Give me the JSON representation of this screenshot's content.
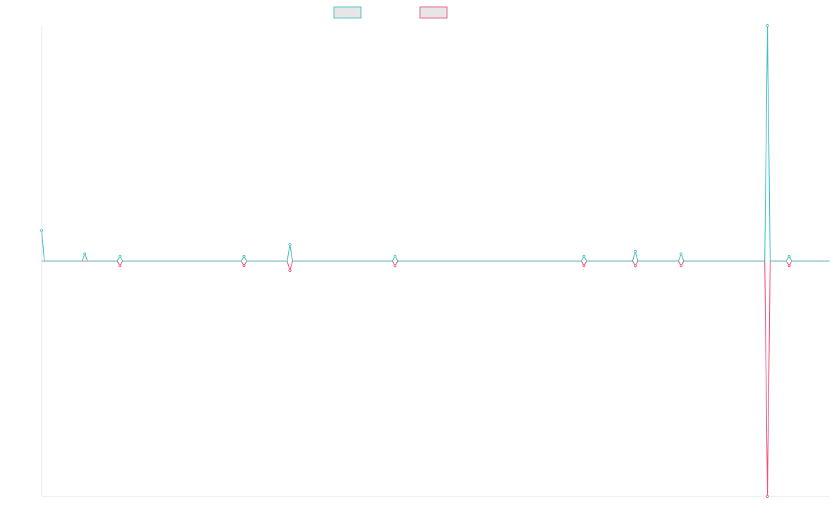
{
  "chart_data": {
    "type": "line",
    "title": "",
    "xlabel": "",
    "ylabel": "",
    "grid": false,
    "legend": "top-center",
    "colors": {
      "series_a": "#3fbfbf",
      "series_b": "#ef4f76",
      "legend_fill": "#e6e6e6",
      "axis": "#e6e6e6"
    },
    "ylim": [
      -100,
      100
    ],
    "series": [
      {
        "values": [
          13,
          0,
          0,
          0,
          0,
          0,
          0,
          0,
          0,
          0,
          0,
          0,
          0,
          0,
          0,
          0,
          3,
          0,
          0,
          0,
          0,
          0,
          0,
          0,
          0,
          0,
          0,
          0,
          0,
          2,
          0,
          0,
          0,
          0,
          0,
          0,
          0,
          0,
          0,
          0,
          0,
          0,
          0,
          0,
          0,
          0,
          0,
          0,
          0,
          0,
          0,
          0,
          0,
          0,
          0,
          0,
          0,
          0,
          0,
          0,
          0,
          0,
          0,
          0,
          0,
          0,
          0,
          0,
          0,
          0,
          0,
          0,
          0,
          0,
          0,
          2,
          0,
          0,
          0,
          0,
          0,
          0,
          0,
          0,
          0,
          0,
          0,
          0,
          0,
          0,
          0,
          0,
          7,
          0,
          0,
          0,
          0,
          0,
          0,
          0,
          0,
          0,
          0,
          0,
          0,
          0,
          0,
          0,
          0,
          0,
          0,
          0,
          0,
          0,
          0,
          0,
          0,
          0,
          0,
          0,
          0,
          0,
          0,
          0,
          0,
          0,
          0,
          0,
          0,
          0,
          0,
          2,
          0,
          0,
          0,
          0,
          0,
          0,
          0,
          0,
          0,
          0,
          0,
          0,
          0,
          0,
          0,
          0,
          0,
          0,
          0,
          0,
          0,
          0,
          0,
          0,
          0,
          0,
          0,
          0,
          0,
          0,
          0,
          0,
          0,
          0,
          0,
          0,
          0,
          0,
          0,
          0,
          0,
          0,
          0,
          0,
          0,
          0,
          0,
          0,
          0,
          0,
          0,
          0,
          0,
          0,
          0,
          0,
          0,
          0,
          0,
          0,
          0,
          0,
          0,
          0,
          0,
          0,
          0,
          0,
          0,
          2,
          0,
          0,
          0,
          0,
          0,
          0,
          0,
          0,
          0,
          0,
          0,
          0,
          0,
          0,
          0,
          0,
          0,
          0,
          4,
          0,
          0,
          0,
          0,
          0,
          0,
          0,
          0,
          0,
          0,
          0,
          0,
          0,
          0,
          0,
          0,
          3,
          0,
          0,
          0,
          0,
          0,
          0,
          0,
          0,
          0,
          0,
          0,
          0,
          0,
          0,
          0,
          0,
          0,
          0,
          0,
          0,
          0,
          0,
          0,
          0,
          0,
          0,
          0,
          0,
          0,
          0,
          0,
          100,
          0,
          0,
          0,
          0,
          0,
          0,
          0,
          2,
          0,
          0,
          0,
          0,
          0,
          0,
          0,
          0,
          0,
          0,
          0,
          0,
          0,
          0,
          0
        ]
      },
      {
        "values": [
          0,
          0,
          0,
          0,
          0,
          0,
          0,
          0,
          0,
          0,
          0,
          0,
          0,
          0,
          0,
          0,
          0,
          0,
          0,
          0,
          0,
          0,
          0,
          0,
          0,
          0,
          0,
          0,
          0,
          -2,
          0,
          0,
          0,
          0,
          0,
          0,
          0,
          0,
          0,
          0,
          0,
          0,
          0,
          0,
          0,
          0,
          0,
          0,
          0,
          0,
          0,
          0,
          0,
          0,
          0,
          0,
          0,
          0,
          0,
          0,
          0,
          0,
          0,
          0,
          0,
          0,
          0,
          0,
          0,
          0,
          0,
          0,
          0,
          0,
          0,
          -2,
          0,
          0,
          0,
          0,
          0,
          0,
          0,
          0,
          0,
          0,
          0,
          0,
          0,
          0,
          0,
          0,
          -4,
          0,
          0,
          0,
          0,
          0,
          0,
          0,
          0,
          0,
          0,
          0,
          0,
          0,
          0,
          0,
          0,
          0,
          0,
          0,
          0,
          0,
          0,
          0,
          0,
          0,
          0,
          0,
          0,
          0,
          0,
          0,
          0,
          0,
          0,
          0,
          0,
          0,
          0,
          -2,
          0,
          0,
          0,
          0,
          0,
          0,
          0,
          0,
          0,
          0,
          0,
          0,
          0,
          0,
          0,
          0,
          0,
          0,
          0,
          0,
          0,
          0,
          0,
          0,
          0,
          0,
          0,
          0,
          0,
          0,
          0,
          0,
          0,
          0,
          0,
          0,
          0,
          0,
          0,
          0,
          0,
          0,
          0,
          0,
          0,
          0,
          0,
          0,
          0,
          0,
          0,
          0,
          0,
          0,
          0,
          0,
          0,
          0,
          0,
          0,
          0,
          0,
          0,
          0,
          0,
          0,
          0,
          0,
          0,
          -2,
          0,
          0,
          0,
          0,
          0,
          0,
          0,
          0,
          0,
          0,
          0,
          0,
          0,
          0,
          0,
          0,
          0,
          0,
          -2,
          0,
          0,
          0,
          0,
          0,
          0,
          0,
          0,
          0,
          0,
          0,
          0,
          0,
          0,
          0,
          0,
          -2,
          0,
          0,
          0,
          0,
          0,
          0,
          0,
          0,
          0,
          0,
          0,
          0,
          0,
          0,
          0,
          0,
          0,
          0,
          0,
          0,
          0,
          0,
          0,
          0,
          0,
          0,
          0,
          0,
          0,
          0,
          0,
          -100,
          0,
          0,
          0,
          0,
          0,
          0,
          0,
          -2,
          0,
          0,
          0,
          0,
          0,
          0,
          0,
          0,
          0,
          0,
          0,
          0,
          0,
          0,
          0
        ]
      }
    ]
  }
}
